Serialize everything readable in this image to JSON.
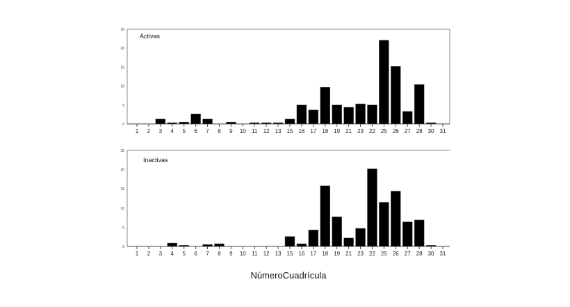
{
  "chart_data": [
    {
      "type": "bar",
      "title": "Activas",
      "xlabel": "NúmeroCuadrícula",
      "ylabel": "",
      "ylim": [
        0,
        25
      ],
      "yticks": [
        0,
        5,
        10,
        15,
        20,
        25
      ],
      "grid": false,
      "bar_color": "#000000",
      "categories": [
        "1",
        "2",
        "3",
        "4",
        "5",
        "6",
        "7",
        "8",
        "9",
        "10",
        "11",
        "12",
        "13",
        "15",
        "16",
        "17",
        "18",
        "19",
        "21",
        "23",
        "22",
        "25",
        "26",
        "27",
        "28",
        "30",
        "31"
      ],
      "values": [
        0,
        0,
        1.3,
        0.3,
        0.5,
        2.6,
        1.3,
        0,
        0.5,
        0,
        0.3,
        0.3,
        0.3,
        1.3,
        5,
        3.7,
        9.7,
        5,
        4.4,
        5.3,
        5,
        22.1,
        15.2,
        3.3,
        10.4,
        0.3,
        0
      ]
    },
    {
      "type": "bar",
      "title": "Inactivas",
      "xlabel": "NúmeroCuadrícula",
      "ylabel": "",
      "ylim": [
        0,
        25
      ],
      "yticks": [
        0,
        5,
        10,
        15,
        20,
        25
      ],
      "grid": false,
      "bar_color": "#000000",
      "categories": [
        "1",
        "2",
        "3",
        "4",
        "5",
        "6",
        "7",
        "8",
        "9",
        "10",
        "11",
        "12",
        "13",
        "15",
        "16",
        "17",
        "18",
        "19",
        "21",
        "23",
        "22",
        "25",
        "26",
        "27",
        "28",
        "30",
        "31"
      ],
      "values": [
        0,
        0,
        0,
        0.9,
        0.3,
        0,
        0.5,
        0.7,
        0,
        0,
        0,
        0,
        0,
        2.6,
        0.7,
        4.3,
        15.8,
        7.7,
        2.2,
        4.7,
        20.2,
        11.5,
        14.4,
        6.4,
        6.9,
        0.3,
        0
      ]
    }
  ]
}
